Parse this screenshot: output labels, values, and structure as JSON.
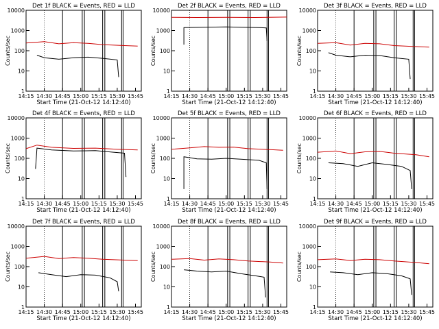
{
  "figure": {
    "shared": {
      "xlabel": "Start Time (21-Oct-12 14:12:40)",
      "ylabel": "Counts/sec",
      "x_tick_labels": [
        "14:15",
        "14:30",
        "14:45",
        "15:00",
        "15:15",
        "15:30",
        "15:45"
      ],
      "y_tick_labels": [
        "1",
        "10",
        "100",
        "1000",
        "10000"
      ],
      "xlim_minutes": [
        14.25,
        15.83
      ],
      "ylim": [
        1,
        10000
      ],
      "y_scale": "log",
      "colors": {
        "events": "#000000",
        "lld": "#cc0000",
        "axes": "#000000"
      }
    }
  },
  "chart_data": [
    {
      "type": "line",
      "title": "Det 1f BLACK = Events, RED = LLD",
      "series": [
        {
          "name": "Events",
          "values": [
            [
              14.4,
              60
            ],
            [
              14.5,
              45
            ],
            [
              14.7,
              38
            ],
            [
              14.9,
              45
            ],
            [
              15.1,
              48
            ],
            [
              15.3,
              42
            ],
            [
              15.5,
              35
            ],
            [
              15.52,
              5
            ]
          ]
        },
        {
          "name": "LLD",
          "values": [
            [
              14.25,
              240
            ],
            [
              14.5,
              280
            ],
            [
              14.7,
              220
            ],
            [
              14.9,
              250
            ],
            [
              15.1,
              230
            ],
            [
              15.3,
              200
            ],
            [
              15.6,
              180
            ],
            [
              15.78,
              170
            ]
          ]
        }
      ]
    },
    {
      "type": "line",
      "title": "Det 2f BLACK = Events, RED = LLD",
      "series": [
        {
          "name": "Events",
          "values": [
            [
              14.42,
              200
            ],
            [
              14.42,
              1400
            ],
            [
              14.7,
              1450
            ],
            [
              15.0,
              1500
            ],
            [
              15.2,
              1450
            ],
            [
              15.45,
              1400
            ],
            [
              15.55,
              1350
            ],
            [
              15.56,
              300
            ]
          ]
        },
        {
          "name": "LLD",
          "values": [
            [
              14.25,
              4500
            ],
            [
              14.6,
              4400
            ],
            [
              15.0,
              4500
            ],
            [
              15.4,
              4400
            ],
            [
              15.83,
              4600
            ]
          ]
        }
      ]
    },
    {
      "type": "line",
      "title": "Det 3f BLACK = Events, RED = LLD",
      "series": [
        {
          "name": "Events",
          "values": [
            [
              14.4,
              80
            ],
            [
              14.5,
              60
            ],
            [
              14.7,
              50
            ],
            [
              14.9,
              60
            ],
            [
              15.1,
              58
            ],
            [
              15.3,
              45
            ],
            [
              15.5,
              38
            ],
            [
              15.52,
              4
            ]
          ]
        },
        {
          "name": "LLD",
          "values": [
            [
              14.25,
              230
            ],
            [
              14.5,
              250
            ],
            [
              14.7,
              190
            ],
            [
              14.9,
              230
            ],
            [
              15.1,
              220
            ],
            [
              15.3,
              180
            ],
            [
              15.6,
              160
            ],
            [
              15.78,
              150
            ]
          ]
        }
      ]
    },
    {
      "type": "line",
      "title": "Det 4f BLACK = Events, RED = LLD",
      "series": [
        {
          "name": "Events",
          "values": [
            [
              14.38,
              30
            ],
            [
              14.4,
              320
            ],
            [
              14.6,
              260
            ],
            [
              14.9,
              230
            ],
            [
              15.2,
              240
            ],
            [
              15.45,
              200
            ],
            [
              15.6,
              180
            ],
            [
              15.62,
              12
            ]
          ]
        },
        {
          "name": "LLD",
          "values": [
            [
              14.25,
              300
            ],
            [
              14.4,
              450
            ],
            [
              14.6,
              350
            ],
            [
              14.9,
              310
            ],
            [
              15.2,
              320
            ],
            [
              15.5,
              280
            ],
            [
              15.78,
              260
            ]
          ]
        }
      ]
    },
    {
      "type": "line",
      "title": "Det 5f BLACK = Events, RED = LLD",
      "series": [
        {
          "name": "Events",
          "values": [
            [
              14.42,
              3
            ],
            [
              14.42,
              120
            ],
            [
              14.6,
              95
            ],
            [
              14.8,
              90
            ],
            [
              15.0,
              100
            ],
            [
              15.2,
              90
            ],
            [
              15.45,
              80
            ],
            [
              15.55,
              60
            ],
            [
              15.56,
              3
            ]
          ]
        },
        {
          "name": "LLD",
          "values": [
            [
              14.25,
              280
            ],
            [
              14.5,
              330
            ],
            [
              14.7,
              380
            ],
            [
              14.9,
              350
            ],
            [
              15.1,
              360
            ],
            [
              15.3,
              300
            ],
            [
              15.6,
              270
            ],
            [
              15.78,
              250
            ]
          ]
        }
      ]
    },
    {
      "type": "line",
      "title": "Det 6f BLACK = Events, RED = LLD",
      "series": [
        {
          "name": "Events",
          "values": [
            [
              14.4,
              60
            ],
            [
              14.6,
              55
            ],
            [
              14.8,
              40
            ],
            [
              15.0,
              60
            ],
            [
              15.2,
              50
            ],
            [
              15.4,
              40
            ],
            [
              15.52,
              25
            ],
            [
              15.54,
              3
            ]
          ]
        },
        {
          "name": "LLD",
          "values": [
            [
              14.25,
              200
            ],
            [
              14.5,
              230
            ],
            [
              14.7,
              170
            ],
            [
              14.9,
              210
            ],
            [
              15.1,
              220
            ],
            [
              15.3,
              180
            ],
            [
              15.6,
              150
            ],
            [
              15.78,
              120
            ]
          ]
        }
      ]
    },
    {
      "type": "line",
      "title": "Det 7f BLACK = Events, RED = LLD",
      "series": [
        {
          "name": "Events",
          "values": [
            [
              14.42,
              50
            ],
            [
              14.6,
              40
            ],
            [
              14.8,
              32
            ],
            [
              15.0,
              40
            ],
            [
              15.2,
              38
            ],
            [
              15.4,
              28
            ],
            [
              15.5,
              18
            ],
            [
              15.52,
              6
            ]
          ]
        },
        {
          "name": "LLD",
          "values": [
            [
              14.25,
              260
            ],
            [
              14.5,
              320
            ],
            [
              14.7,
              250
            ],
            [
              14.9,
              280
            ],
            [
              15.1,
              260
            ],
            [
              15.3,
              230
            ],
            [
              15.6,
              210
            ],
            [
              15.78,
              200
            ]
          ]
        }
      ]
    },
    {
      "type": "line",
      "title": "Det 8f BLACK = Events, RED = LLD",
      "series": [
        {
          "name": "Events",
          "values": [
            [
              14.42,
              70
            ],
            [
              14.6,
              60
            ],
            [
              14.8,
              55
            ],
            [
              15.0,
              60
            ],
            [
              15.2,
              45
            ],
            [
              15.4,
              35
            ],
            [
              15.52,
              30
            ],
            [
              15.54,
              3
            ]
          ]
        },
        {
          "name": "LLD",
          "values": [
            [
              14.25,
              230
            ],
            [
              14.5,
              250
            ],
            [
              14.7,
              210
            ],
            [
              14.9,
              240
            ],
            [
              15.1,
              220
            ],
            [
              15.3,
              190
            ],
            [
              15.6,
              170
            ],
            [
              15.78,
              150
            ]
          ]
        }
      ]
    },
    {
      "type": "line",
      "title": "Det 9f BLACK = Events, RED = LLD",
      "series": [
        {
          "name": "Events",
          "values": [
            [
              14.42,
              55
            ],
            [
              14.6,
              50
            ],
            [
              14.8,
              40
            ],
            [
              15.0,
              50
            ],
            [
              15.2,
              45
            ],
            [
              15.4,
              35
            ],
            [
              15.52,
              25
            ],
            [
              15.54,
              4
            ]
          ]
        },
        {
          "name": "LLD",
          "values": [
            [
              14.25,
              220
            ],
            [
              14.5,
              240
            ],
            [
              14.7,
              200
            ],
            [
              14.9,
              230
            ],
            [
              15.1,
              220
            ],
            [
              15.3,
              190
            ],
            [
              15.6,
              160
            ],
            [
              15.78,
              140
            ]
          ]
        }
      ]
    }
  ]
}
